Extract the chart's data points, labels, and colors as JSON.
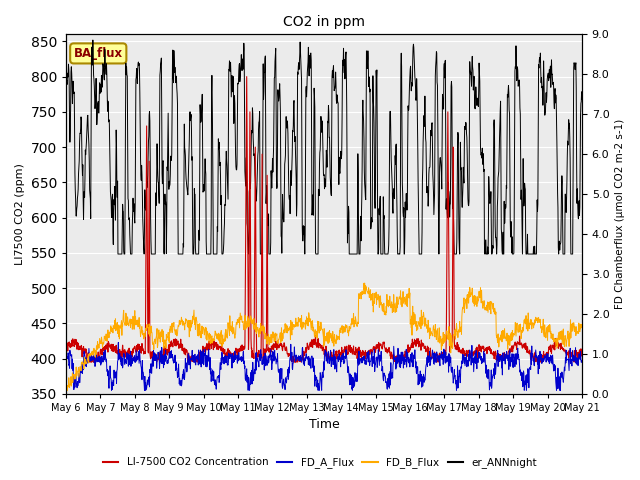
{
  "title": "CO2 in ppm",
  "ylabel_left": "LI7500 CO2 (ppm)",
  "ylabel_right": "FD Chamberflux (μmol CO2 m-2 s-1)",
  "xlabel": "Time",
  "ylim_left": [
    350,
    860
  ],
  "ylim_right": [
    0.0,
    9.0
  ],
  "yticks_left": [
    350,
    400,
    450,
    500,
    550,
    600,
    650,
    700,
    750,
    800,
    850
  ],
  "yticks_right": [
    0.0,
    1.0,
    2.0,
    3.0,
    4.0,
    5.0,
    6.0,
    7.0,
    8.0,
    9.0
  ],
  "xticklabels": [
    "May 6",
    "May 7",
    "May 8",
    "May 9",
    "May 10",
    "May 11",
    "May 12",
    "May 13",
    "May 14",
    "May 15",
    "May 16",
    "May 17",
    "May 18",
    "May 19",
    "May 20",
    "May 21"
  ],
  "colors": {
    "red": "#cc0000",
    "blue": "#0000cc",
    "orange": "#ffaa00",
    "black": "#000000"
  },
  "legend_labels": [
    "LI-7500 CO2 Concentration",
    "FD_A_Flux",
    "FD_B_Flux",
    "er_ANNnight"
  ],
  "annotation_text": "BA_flux",
  "annotation_color": "#8B0000",
  "annotation_bg": "#ffff99",
  "annotation_border": "#aa8800",
  "plot_bg": "#ebebeb",
  "n_days": 15,
  "pts_per_day": 96
}
